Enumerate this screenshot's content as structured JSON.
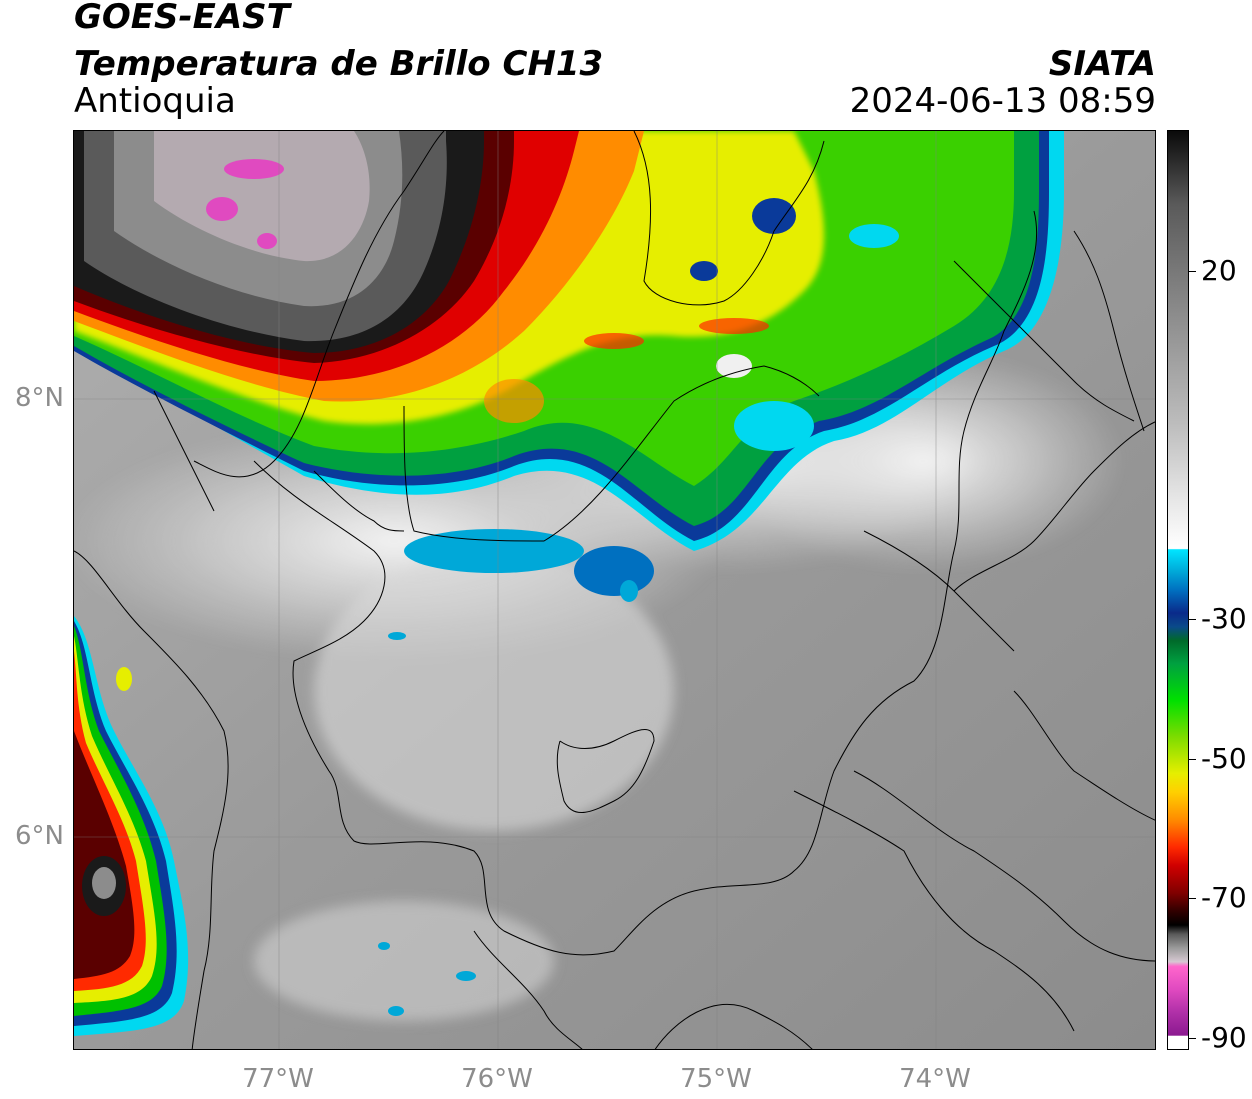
{
  "header": {
    "satellite": "GOES-EAST",
    "product": "Temperatura de Brillo CH13",
    "region": "Antioquia",
    "organization": "SIATA",
    "datetime": "2024-06-13 08:59"
  },
  "axes": {
    "lat_labels": [
      "8°N",
      "6°N"
    ],
    "lon_labels": [
      "77°W",
      "76°W",
      "75°W",
      "74°W"
    ]
  },
  "colorbar": {
    "tick_labels": [
      "20",
      "-30",
      "-50",
      "-70",
      "-90"
    ]
  },
  "colors": {
    "warm_gray": "#7a7a7a",
    "cold_cloud_green": "#00c000",
    "cold_cloud_red": "#e00000",
    "overshoot_magenta": "#e04ac0",
    "cloud_edge_cyan": "#00d8f0"
  }
}
